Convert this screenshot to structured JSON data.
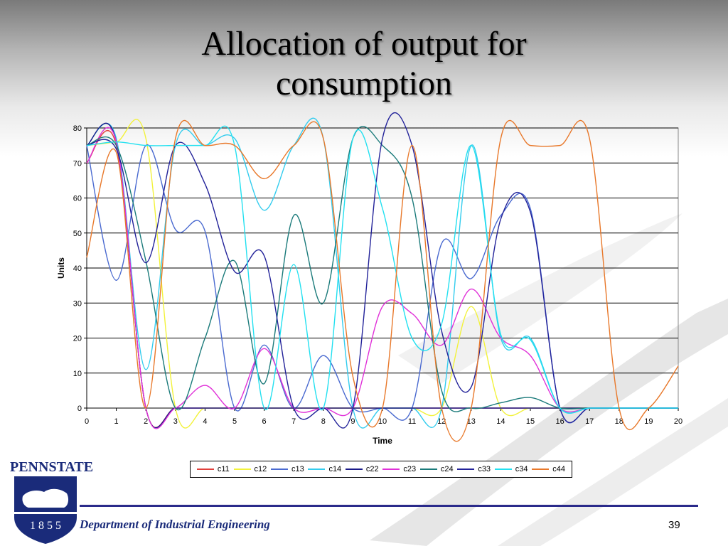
{
  "title": {
    "line1": "Allocation of output for",
    "line2": "consumption"
  },
  "logo": {
    "name": "PENNSTATE",
    "year": "1 8 5 5"
  },
  "footer": {
    "department": "Department of Industrial Engineering",
    "slide_number": "39"
  },
  "chart_data": {
    "type": "line",
    "title": "",
    "xlabel": "Time",
    "ylabel": "Units",
    "xlim": [
      0,
      20
    ],
    "ylim": [
      0,
      80
    ],
    "yticks": [
      0,
      10,
      20,
      30,
      40,
      50,
      60,
      70,
      80
    ],
    "xticks": [
      0,
      1,
      2,
      3,
      4,
      5,
      6,
      7,
      8,
      9,
      10,
      11,
      12,
      13,
      14,
      15,
      16,
      17,
      18,
      19,
      20
    ],
    "grid": "horizontal",
    "legend_position": "bottom",
    "x": [
      0,
      1,
      2,
      3,
      4,
      5,
      6,
      7,
      8,
      9,
      10,
      11,
      12,
      13,
      14,
      15,
      16,
      17,
      18,
      19,
      20
    ],
    "series": [
      {
        "name": "c11",
        "color": "#e0403c",
        "values": [
          70,
          75,
          0,
          0,
          0,
          0,
          0,
          0,
          0,
          0,
          0,
          0,
          0,
          0,
          0,
          0,
          0,
          0,
          0,
          0,
          0
        ]
      },
      {
        "name": "c12",
        "color": "#f2f23a",
        "values": [
          75,
          76,
          77,
          0,
          0,
          0,
          0,
          0,
          0,
          0,
          0,
          0,
          0,
          29,
          0,
          0,
          0,
          0,
          0,
          0,
          0
        ]
      },
      {
        "name": "c13",
        "color": "#4a6ad0",
        "values": [
          75,
          36.5,
          75,
          51,
          50.5,
          0,
          18,
          0,
          15,
          0,
          0,
          0,
          47,
          37,
          55,
          57,
          0,
          0,
          0,
          0,
          0
        ]
      },
      {
        "name": "c14",
        "color": "#33ccee",
        "values": [
          75,
          77,
          11,
          75,
          75,
          77,
          56.5,
          75,
          77,
          0,
          0,
          0,
          0,
          75,
          20,
          20,
          0,
          0,
          0,
          0,
          0
        ]
      },
      {
        "name": "c22",
        "color": "#1a1a88",
        "values": [
          75,
          76,
          0,
          0,
          0,
          0,
          0,
          0,
          0,
          0,
          0,
          0,
          0,
          0,
          0,
          0,
          0,
          0,
          0,
          0,
          0
        ]
      },
      {
        "name": "c23",
        "color": "#e030d8",
        "values": [
          70,
          76,
          0,
          0,
          6.5,
          0,
          17,
          0,
          0,
          0,
          29,
          27,
          18,
          34,
          20,
          15,
          0,
          0,
          0,
          0,
          0
        ]
      },
      {
        "name": "c24",
        "color": "#1a7a7a",
        "values": [
          75,
          75,
          42,
          0,
          20,
          42,
          7,
          55,
          30,
          77,
          75,
          60,
          5,
          0,
          1.5,
          3,
          0,
          0,
          0,
          0,
          0
        ]
      },
      {
        "name": "c33",
        "color": "#222299",
        "values": [
          75,
          74,
          41.5,
          75,
          64,
          39,
          43.5,
          0,
          0,
          0,
          77,
          75,
          22,
          6,
          54,
          56,
          0,
          0,
          0,
          0,
          0
        ]
      },
      {
        "name": "c34",
        "color": "#22e0f0",
        "values": [
          75,
          76,
          75,
          75,
          75,
          75,
          0,
          41,
          0,
          77,
          57,
          20,
          24,
          75,
          21,
          19.5,
          0,
          0,
          0,
          0,
          0
        ]
      },
      {
        "name": "c44",
        "color": "#e8782a",
        "values": [
          43,
          73,
          0,
          77,
          75,
          75,
          65.5,
          75,
          77,
          9,
          0,
          75,
          0,
          0,
          77,
          75,
          75,
          77,
          0,
          0,
          12
        ]
      }
    ]
  }
}
